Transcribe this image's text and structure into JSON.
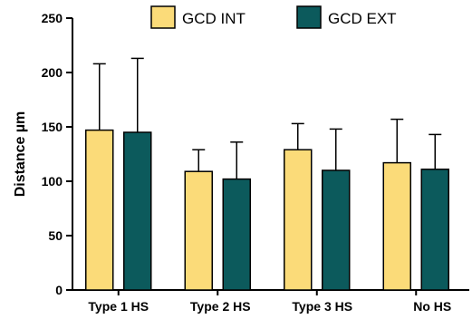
{
  "chart_data": {
    "type": "bar",
    "title": "",
    "xlabel": "",
    "ylabel": "Distance µm",
    "ylim": [
      0,
      250
    ],
    "yticks": [
      "0",
      "50",
      "100",
      "150",
      "200",
      "250"
    ],
    "ytick_values": [
      0,
      50,
      100,
      150,
      200,
      250
    ],
    "grid": false,
    "legend": "top-right",
    "categories": [
      "Type 1 HS",
      "Type 2 HS",
      "Type 3 HS",
      "No HS"
    ],
    "series": [
      {
        "name": "GCD INT",
        "color": "#FBDB79",
        "values": [
          147,
          109,
          129,
          117
        ],
        "error_upper": [
          208,
          129,
          153,
          157
        ]
      },
      {
        "name": "GCD EXT",
        "color": "#0C5A5C",
        "values": [
          145,
          102,
          110,
          111
        ],
        "error_upper": [
          213,
          136,
          148,
          143
        ]
      }
    ]
  }
}
